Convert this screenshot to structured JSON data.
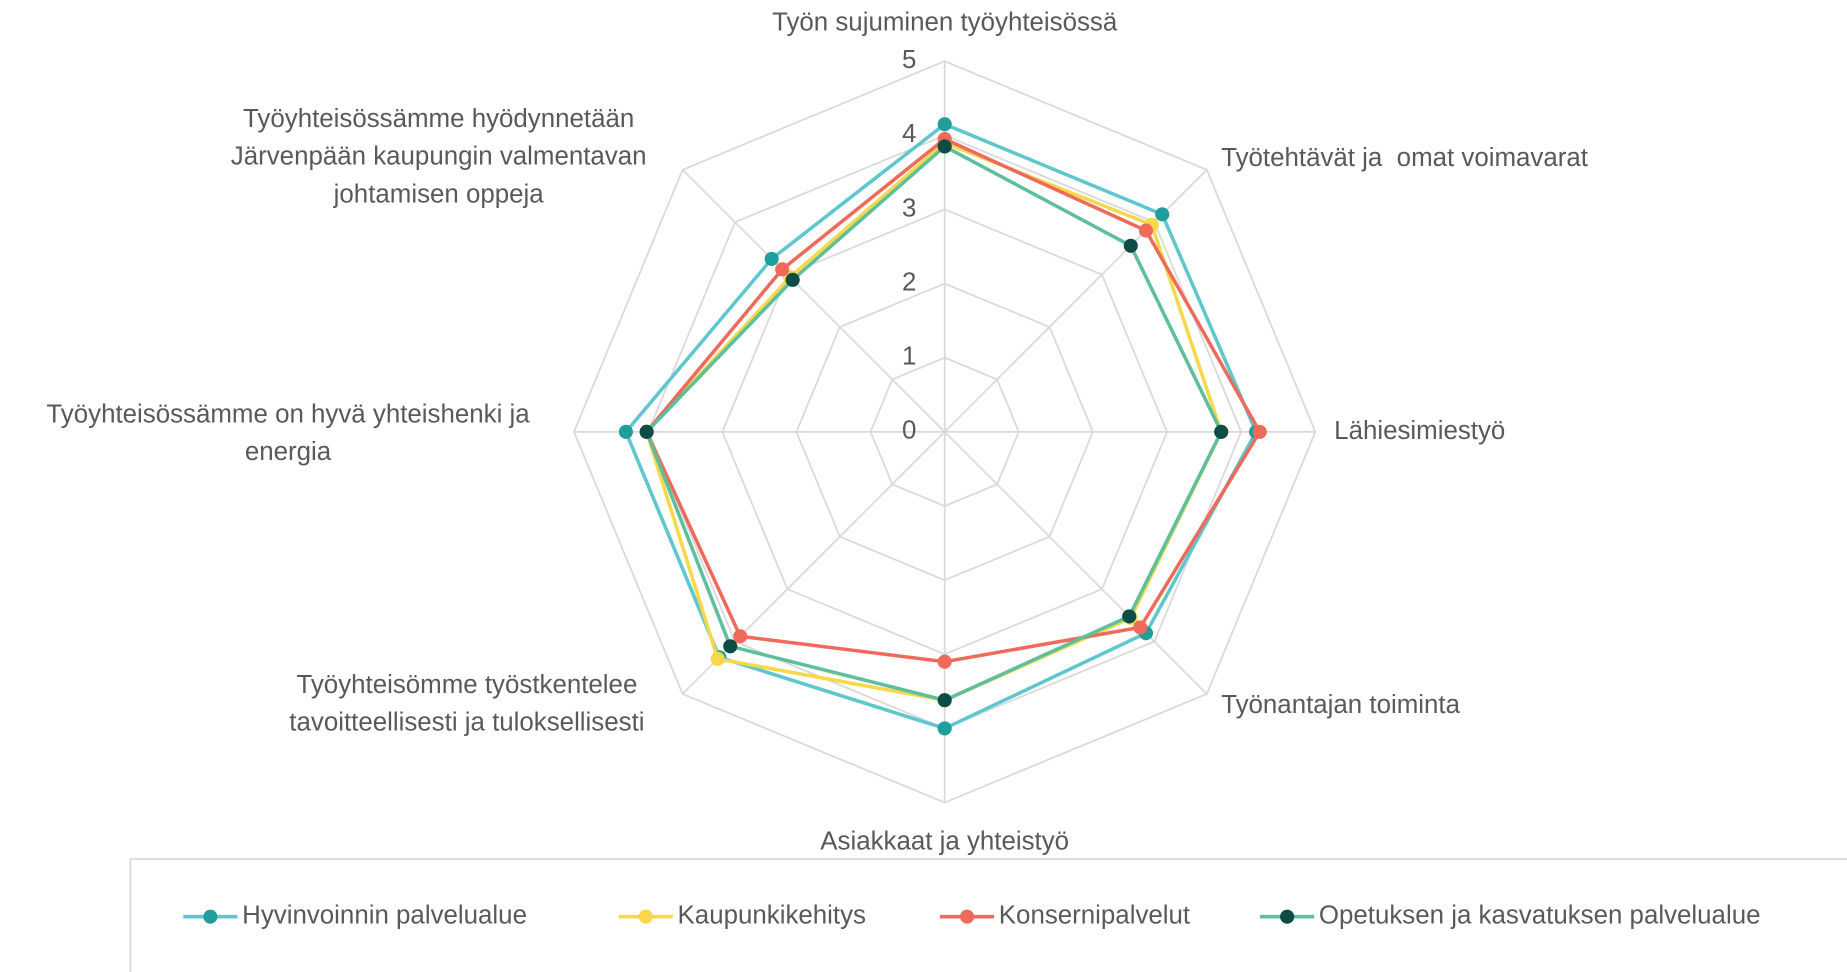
{
  "chart_data": {
    "type": "radar",
    "categories": [
      "Työn sujuminen työyhteisössä",
      "Työtehtävät ja  omat voimavarat",
      "Lähiesimiestyö",
      "Työnantajan toiminta",
      "Asiakkaat ja yhteistyö",
      "Työyhteisömme työstkentelee\ntavoitteellisesti ja tuloksellisesti",
      "Työyhteisössämme on hyvä yhteishenki ja\nenergia",
      "Työyhteisössämme hyödynnetään\nJärvenpään kaupungin valmentavan\njohtamisen oppeja"
    ],
    "series": [
      {
        "name": "Hyvinvoinnin palvelualue",
        "color": "#5ec6cd",
        "marker_color": "#1f9e9b",
        "values": [
          4.15,
          4.15,
          4.2,
          3.84,
          4.0,
          4.3,
          4.3,
          3.3
        ]
      },
      {
        "name": "Kaupunkikehitys",
        "color": "#f6d84a",
        "marker_color": "#f6d84a",
        "values": [
          3.9,
          3.95,
          3.73,
          3.55,
          3.62,
          4.33,
          4.02,
          2.95
        ]
      },
      {
        "name": "Konsernipalvelut",
        "color": "#ee6b5b",
        "marker_color": "#ee6b5b",
        "values": [
          3.95,
          3.84,
          4.25,
          3.73,
          3.1,
          3.9,
          4.02,
          3.1
        ]
      },
      {
        "name": "Opetuksen ja kasvatuksen palvelualue",
        "color": "#5dbf9b",
        "marker_color": "#0d4d46",
        "values": [
          3.85,
          3.55,
          3.73,
          3.52,
          3.62,
          4.09,
          4.02,
          2.9
        ]
      }
    ],
    "rlim": [
      0,
      5
    ],
    "rticks": [
      0,
      1,
      2,
      3,
      4,
      5
    ],
    "grid": true,
    "legend": "bottom"
  }
}
